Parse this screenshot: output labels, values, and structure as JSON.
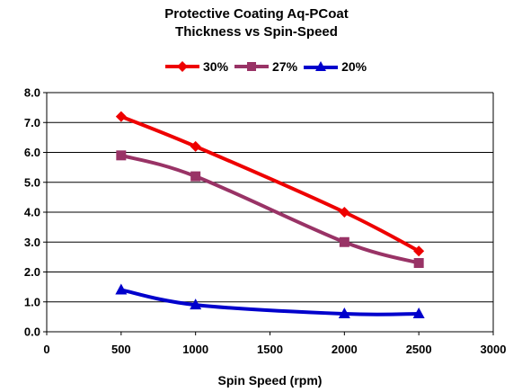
{
  "chart_data": {
    "type": "line",
    "title": "Protective Coating Aq-PCoat",
    "subtitle": "Thickness vs Spin-Speed",
    "xlabel": "Spin Speed (rpm)",
    "ylabel": "",
    "xlim": [
      0,
      3000
    ],
    "ylim": [
      0,
      8
    ],
    "x_ticks": [
      "0",
      "500",
      "1000",
      "1500",
      "2000",
      "2500",
      "3000"
    ],
    "y_ticks": [
      "0.0",
      "1.0",
      "2.0",
      "3.0",
      "4.0",
      "5.0",
      "6.0",
      "7.0",
      "8.0"
    ],
    "grid": "horizontal",
    "legend_position": "top",
    "x": [
      500,
      1000,
      2000,
      2500
    ],
    "series": [
      {
        "name": "30%",
        "values": [
          7.2,
          6.2,
          4.0,
          2.7
        ],
        "color": "#ee0000",
        "marker": "diamond"
      },
      {
        "name": "27%",
        "values": [
          5.9,
          5.2,
          3.0,
          2.3
        ],
        "color": "#993366",
        "marker": "square"
      },
      {
        "name": "20%",
        "values": [
          1.4,
          0.9,
          0.6,
          0.6
        ],
        "color": "#0000cc",
        "marker": "triangle"
      }
    ]
  }
}
